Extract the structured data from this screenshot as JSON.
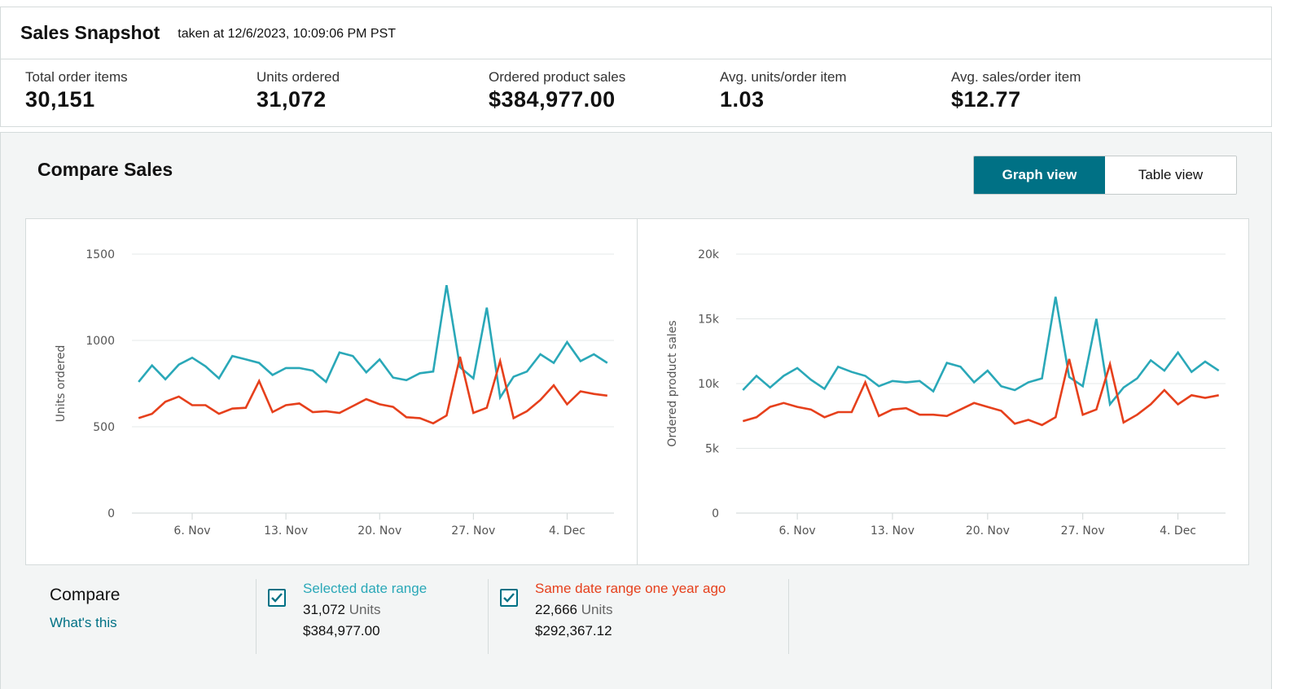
{
  "snapshot": {
    "title": "Sales Snapshot",
    "taken_at": "taken at 12/6/2023, 10:09:06 PM PST",
    "metrics": [
      {
        "label": "Total order items",
        "value": "30,151"
      },
      {
        "label": "Units ordered",
        "value": "31,072"
      },
      {
        "label": "Ordered product sales",
        "value": "$384,977.00"
      },
      {
        "label": "Avg. units/order item",
        "value": "1.03"
      },
      {
        "label": "Avg. sales/order item",
        "value": "$12.77"
      }
    ]
  },
  "compare": {
    "title": "Compare Sales",
    "graph_view_label": "Graph view",
    "table_view_label": "Table view",
    "legend": {
      "compare_label": "Compare",
      "whats_this": "What's this",
      "selected": {
        "name": "Selected date range",
        "units_value": "31,072",
        "units_word": "Units",
        "sales": "$384,977.00",
        "color": "#2aa8b8"
      },
      "prior": {
        "name": "Same date range one year ago",
        "units_value": "22,666",
        "units_word": "Units",
        "sales": "$292,367.12",
        "color": "#e6401c"
      }
    }
  },
  "colors": {
    "teal": "#2aa8b8",
    "red": "#e6401c",
    "accent": "#007185"
  },
  "chart_data": [
    {
      "type": "line",
      "ylabel": "Units ordered",
      "ylim": [
        0,
        1500
      ],
      "yticks": [
        0,
        500,
        1000,
        1500
      ],
      "ytick_labels": [
        "0",
        "500",
        "1000",
        "1500"
      ],
      "xticks": [
        {
          "index": 4,
          "label": "6. Nov"
        },
        {
          "index": 11,
          "label": "13. Nov"
        },
        {
          "index": 18,
          "label": "20. Nov"
        },
        {
          "index": 25,
          "label": "27. Nov"
        },
        {
          "index": 32,
          "label": "4. Dec"
        }
      ],
      "series": [
        {
          "name": "Selected date range",
          "color": "#2aa8b8",
          "values": [
            760,
            855,
            775,
            860,
            900,
            850,
            780,
            910,
            890,
            870,
            800,
            840,
            840,
            825,
            760,
            930,
            910,
            815,
            890,
            785,
            770,
            810,
            820,
            1320,
            845,
            780,
            1190,
            670,
            790,
            820,
            920,
            870,
            990,
            880,
            920,
            870
          ]
        },
        {
          "name": "Same date range one year ago",
          "color": "#e6401c",
          "values": [
            550,
            575,
            645,
            675,
            625,
            625,
            575,
            605,
            610,
            765,
            585,
            625,
            635,
            585,
            590,
            580,
            620,
            660,
            630,
            615,
            555,
            550,
            520,
            565,
            905,
            580,
            610,
            880,
            550,
            590,
            655,
            740,
            630,
            705,
            690,
            680
          ]
        }
      ]
    },
    {
      "type": "line",
      "ylabel": "Ordered product sales",
      "ylim": [
        0,
        20000
      ],
      "yticks": [
        0,
        5000,
        10000,
        15000,
        20000
      ],
      "ytick_labels": [
        "0",
        "5k",
        "10k",
        "15k",
        "20k"
      ],
      "xticks": [
        {
          "index": 4,
          "label": "6. Nov"
        },
        {
          "index": 11,
          "label": "13. Nov"
        },
        {
          "index": 18,
          "label": "20. Nov"
        },
        {
          "index": 25,
          "label": "27. Nov"
        },
        {
          "index": 32,
          "label": "4. Dec"
        }
      ],
      "series": [
        {
          "name": "Selected date range",
          "color": "#2aa8b8",
          "values": [
            9500,
            10600,
            9700,
            10600,
            11200,
            10300,
            9600,
            11300,
            10900,
            10600,
            9800,
            10200,
            10100,
            10200,
            9400,
            11600,
            11300,
            10100,
            11000,
            9800,
            9500,
            10100,
            10400,
            16700,
            10500,
            9800,
            15000,
            8400,
            9700,
            10400,
            11800,
            11000,
            12400,
            10900,
            11700,
            11000
          ]
        },
        {
          "name": "Same date range one year ago",
          "color": "#e6401c",
          "values": [
            7100,
            7400,
            8200,
            8500,
            8200,
            8000,
            7400,
            7800,
            7800,
            10100,
            7500,
            8000,
            8100,
            7600,
            7600,
            7500,
            8000,
            8500,
            8200,
            7900,
            6900,
            7200,
            6800,
            7400,
            11900,
            7600,
            8000,
            11500,
            7000,
            7600,
            8400,
            9500,
            8400,
            9100,
            8900,
            9100
          ]
        }
      ]
    }
  ]
}
